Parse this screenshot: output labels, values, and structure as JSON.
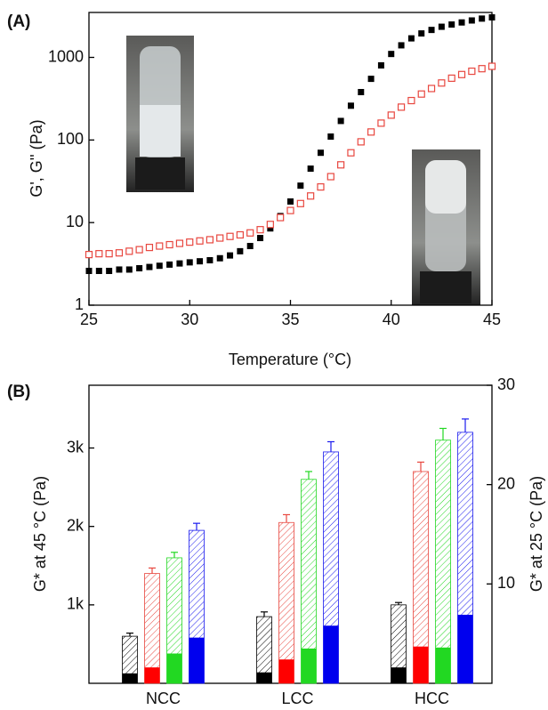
{
  "chart_data": [
    {
      "type": "scatter",
      "panel_label": "(A)",
      "x_label": "Temperature (°C)",
      "y_label": "G', G'' (Pa)",
      "xlim": [
        25,
        45
      ],
      "xticks": [
        25,
        30,
        35,
        40,
        45
      ],
      "ylim": [
        1,
        3500
      ],
      "yticks": [
        1,
        10,
        100,
        1000
      ],
      "log_y": true,
      "x": [
        25,
        25.5,
        26,
        26.5,
        27,
        27.5,
        28,
        28.5,
        29,
        29.5,
        30,
        30.5,
        31,
        31.5,
        32,
        32.5,
        33,
        33.5,
        34,
        34.5,
        35,
        35.5,
        36,
        36.5,
        37,
        37.5,
        38,
        38.5,
        39,
        39.5,
        40,
        40.5,
        41,
        41.5,
        42,
        42.5,
        43,
        43.5,
        44,
        44.5,
        45
      ],
      "series": [
        {
          "color": "#000000",
          "marker": "filled-square",
          "values": [
            2.6,
            2.6,
            2.6,
            2.7,
            2.7,
            2.8,
            2.9,
            3.0,
            3.1,
            3.2,
            3.3,
            3.4,
            3.5,
            3.7,
            4.0,
            4.5,
            5.2,
            6.5,
            8.5,
            12,
            18,
            28,
            45,
            70,
            110,
            170,
            260,
            380,
            550,
            800,
            1100,
            1400,
            1700,
            1950,
            2150,
            2350,
            2500,
            2650,
            2800,
            2950,
            3050
          ]
        },
        {
          "color": "#e8473f",
          "marker": "open-square",
          "values": [
            4.1,
            4.2,
            4.2,
            4.3,
            4.5,
            4.7,
            5.0,
            5.2,
            5.4,
            5.6,
            5.8,
            6.0,
            6.2,
            6.5,
            6.8,
            7.1,
            7.5,
            8.2,
            9.5,
            11.5,
            14,
            17,
            21,
            27,
            36,
            50,
            70,
            95,
            125,
            160,
            200,
            250,
            300,
            360,
            420,
            490,
            560,
            620,
            680,
            730,
            780
          ]
        }
      ]
    },
    {
      "type": "bar",
      "panel_label": "(B)",
      "y_label": "G* at 45 °C (Pa)",
      "y2_label": "G* at 25 °C (Pa)",
      "categories": [
        "NCC",
        "LCC",
        "HCC"
      ],
      "ylim": [
        0,
        3800
      ],
      "yticks": [
        {
          "value": 1000,
          "label": "1k"
        },
        {
          "value": 2000,
          "label": "2k"
        },
        {
          "value": 3000,
          "label": "3k"
        }
      ],
      "y2lim": [
        0,
        30
      ],
      "y2ticks": [
        10,
        20,
        30
      ],
      "series": [
        {
          "color": "#000000",
          "hatched": true,
          "values": [
            600,
            850,
            1000
          ],
          "errors": [
            40,
            60,
            30
          ]
        },
        {
          "color": "#e8473f",
          "hatched": true,
          "values": [
            1400,
            2050,
            2700
          ],
          "errors": [
            70,
            100,
            120
          ]
        },
        {
          "color": "#22d822",
          "hatched": true,
          "values": [
            1600,
            2600,
            3100
          ],
          "errors": [
            70,
            100,
            150
          ]
        },
        {
          "color": "#1a1aee",
          "hatched": true,
          "values": [
            1950,
            2950,
            3200
          ],
          "errors": [
            90,
            130,
            170
          ]
        },
        {
          "color": "#000000",
          "hatched": false,
          "axis": "y2",
          "values": [
            1.0,
            1.1,
            1.6
          ]
        },
        {
          "color": "#ff0000",
          "hatched": false,
          "axis": "y2",
          "values": [
            1.6,
            2.4,
            3.7
          ]
        },
        {
          "color": "#22d822",
          "hatched": false,
          "axis": "y2",
          "values": [
            3.0,
            3.5,
            3.6
          ]
        },
        {
          "color": "#0000ee",
          "hatched": false,
          "axis": "y2",
          "values": [
            4.6,
            5.8,
            6.9
          ]
        }
      ]
    }
  ]
}
